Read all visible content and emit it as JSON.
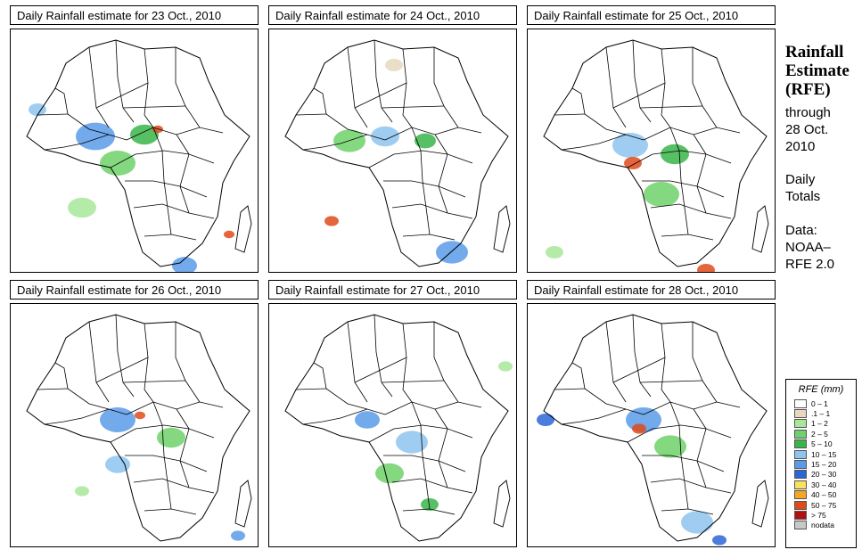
{
  "panels": [
    {
      "title": "Daily Rainfall estimate for  23 Oct., 2010"
    },
    {
      "title": "Daily Rainfall estimate for  24 Oct., 2010"
    },
    {
      "title": "Daily Rainfall estimate for  25 Oct., 2010"
    },
    {
      "title": "Daily Rainfall estimate for  26 Oct., 2010"
    },
    {
      "title": "Daily Rainfall estimate for  27 Oct., 2010"
    },
    {
      "title": "Daily Rainfall estimate for  28 Oct., 2010"
    }
  ],
  "side": {
    "title_lines": [
      "Rainfall",
      "Estimate",
      "(RFE)"
    ],
    "through_lines": [
      "through",
      "28 Oct.",
      "2010"
    ],
    "totals_lines": [
      "Daily",
      "Totals"
    ],
    "source_lines": [
      "Data:",
      "NOAA–",
      "RFE 2.0"
    ]
  },
  "legend": {
    "title": "RFE (mm)",
    "items": [
      {
        "label": "0 – 1",
        "color": "#ffffff"
      },
      {
        "label": ".1 – 1",
        "color": "#e8d8c0"
      },
      {
        "label": "1 – 2",
        "color": "#a8e89a"
      },
      {
        "label": "2 – 5",
        "color": "#6ed26a"
      },
      {
        "label": "5 – 10",
        "color": "#3ab54a"
      },
      {
        "label": "10 – 15",
        "color": "#8ec4f0"
      },
      {
        "label": "15 – 20",
        "color": "#5a9be8"
      },
      {
        "label": "20 – 30",
        "color": "#2b66d6"
      },
      {
        "label": "30 – 40",
        "color": "#f8e060"
      },
      {
        "label": "40 – 50",
        "color": "#f5a623"
      },
      {
        "label": "50 – 75",
        "color": "#e04a1a"
      },
      {
        "label": "> 75",
        "color": "#b01010"
      },
      {
        "label": "nodata",
        "color": "#c8c8c8"
      }
    ]
  }
}
